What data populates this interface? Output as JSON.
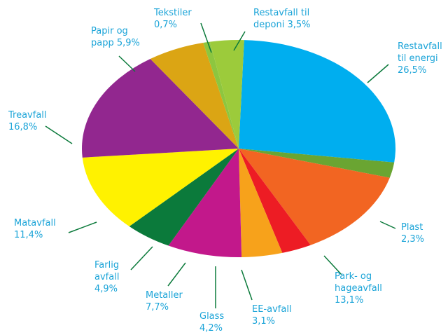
{
  "chart_data": {
    "type": "pie",
    "categories": [
      "Restavfall til energi",
      "Plast",
      "Park- og hageavfall",
      "EE-avfall",
      "Glass",
      "Metaller",
      "Farlig avfall",
      "Matavfall",
      "Treavfall",
      "Papir og papp",
      "Tekstiler",
      "Restavfall til deponi"
    ],
    "values": [
      26.5,
      2.3,
      13.1,
      3.1,
      4.2,
      7.7,
      4.9,
      11.4,
      16.8,
      5.9,
      0.7,
      3.5
    ],
    "value_labels": [
      "26,5%",
      "2,3%",
      "13,1%",
      "3,1%",
      "4,2%",
      "7,7%",
      "4,9%",
      "11,4%",
      "16,8%",
      "5,9%",
      "0,7%",
      "3,5%"
    ],
    "colors": [
      "#00aeef",
      "#6aa532",
      "#f26522",
      "#ed1c24",
      "#f7a21b",
      "#c2188b",
      "#0b7a3b",
      "#fff200",
      "#92278f",
      "#dba514",
      "#8dc63f",
      "#9ccb3b"
    ]
  }
}
